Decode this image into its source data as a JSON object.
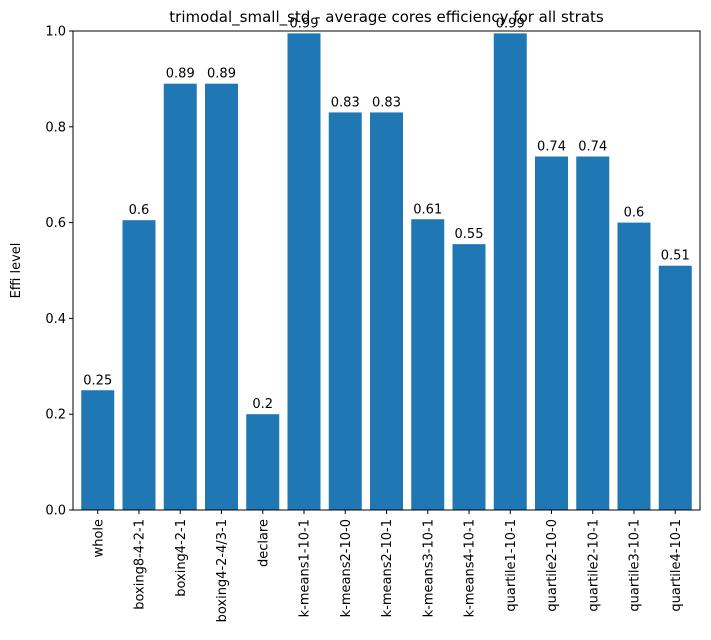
{
  "chart_data": {
    "type": "bar",
    "title": "trimodal_small_std - average cores efficiency for all strats",
    "xlabel": "",
    "ylabel": "Effi level",
    "ylim": [
      0,
      1.0
    ],
    "yticks": [
      "0.0",
      "0.2",
      "0.4",
      "0.6",
      "0.8",
      "1.0"
    ],
    "grid": false,
    "bar_color": "#1f77b4",
    "categories": [
      "whole",
      "boxing8-4-2-1",
      "boxing4-2-1",
      "boxing4-2-4/3-1",
      "declare",
      "k-means1-10-1",
      "k-means2-10-0",
      "k-means2-10-1",
      "k-means3-10-1",
      "k-means4-10-1",
      "quartile1-10-1",
      "quartile2-10-0",
      "quartile2-10-1",
      "quartile3-10-1",
      "quartile4-10-1"
    ],
    "values": [
      0.25,
      0.605,
      0.89,
      0.89,
      0.2,
      0.995,
      0.83,
      0.83,
      0.607,
      0.555,
      0.995,
      0.738,
      0.738,
      0.6,
      0.51
    ],
    "data_labels": [
      "0.25",
      "0.6",
      "0.89",
      "0.89",
      "0.2",
      "0.99",
      "0.83",
      "0.83",
      "0.61",
      "0.55",
      "0.99",
      "0.74",
      "0.74",
      "0.6",
      "0.51"
    ]
  }
}
